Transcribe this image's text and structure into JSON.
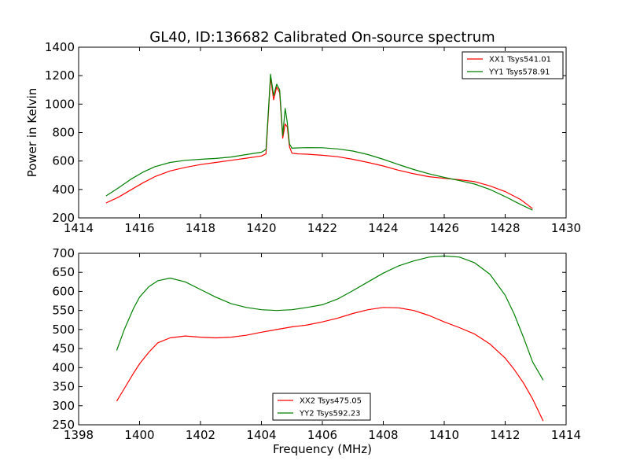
{
  "title": "GL40, ID:136682 Calibrated On-source spectrum",
  "chart_data": [
    {
      "type": "line",
      "ylabel": "Power in Kelvin",
      "xlabel": "",
      "xlim": [
        1414,
        1430
      ],
      "ylim": [
        200,
        1400
      ],
      "xticks": [
        1414,
        1416,
        1418,
        1420,
        1422,
        1424,
        1426,
        1428,
        1430
      ],
      "yticks": [
        200,
        400,
        600,
        800,
        1000,
        1200,
        1400
      ],
      "legend": "top-right",
      "series": [
        {
          "name": "XX1 Tsys541.01",
          "color": "#ff0000",
          "x": [
            1414.9,
            1415.3,
            1415.7,
            1416.1,
            1416.5,
            1417.0,
            1417.5,
            1418.0,
            1418.5,
            1419.0,
            1419.5,
            1420.0,
            1420.15,
            1420.22,
            1420.3,
            1420.4,
            1420.5,
            1420.6,
            1420.7,
            1420.78,
            1420.85,
            1420.92,
            1421.0,
            1421.2,
            1421.5,
            1422.0,
            1422.5,
            1423.0,
            1423.5,
            1424.0,
            1424.5,
            1425.0,
            1425.5,
            1426.0,
            1426.5,
            1427.0,
            1427.5,
            1428.0,
            1428.5,
            1428.9
          ],
          "y": [
            305,
            345,
            395,
            445,
            490,
            530,
            555,
            575,
            590,
            605,
            620,
            635,
            650,
            900,
            1190,
            1030,
            1120,
            1080,
            760,
            860,
            840,
            700,
            655,
            650,
            648,
            640,
            630,
            612,
            590,
            565,
            535,
            510,
            490,
            478,
            468,
            455,
            425,
            385,
            330,
            265
          ]
        },
        {
          "name": "YY1 Tsys578.91",
          "color": "#008000",
          "x": [
            1414.9,
            1415.3,
            1415.7,
            1416.1,
            1416.5,
            1417.0,
            1417.5,
            1418.0,
            1418.5,
            1419.0,
            1419.5,
            1420.0,
            1420.15,
            1420.22,
            1420.3,
            1420.4,
            1420.5,
            1420.6,
            1420.7,
            1420.78,
            1420.85,
            1420.92,
            1421.0,
            1421.2,
            1421.5,
            1422.0,
            1422.5,
            1423.0,
            1423.5,
            1424.0,
            1424.5,
            1425.0,
            1425.5,
            1426.0,
            1426.5,
            1427.0,
            1427.5,
            1428.0,
            1428.5,
            1428.9
          ],
          "y": [
            355,
            410,
            470,
            520,
            560,
            590,
            605,
            612,
            618,
            628,
            645,
            662,
            680,
            920,
            1210,
            1060,
            1140,
            1100,
            780,
            970,
            870,
            720,
            690,
            692,
            694,
            693,
            685,
            670,
            645,
            612,
            575,
            540,
            510,
            485,
            462,
            438,
            400,
            350,
            295,
            255
          ]
        }
      ]
    },
    {
      "type": "line",
      "ylabel": "",
      "xlabel": "Frequency (MHz)",
      "xlim": [
        1398,
        1414
      ],
      "ylim": [
        250,
        700
      ],
      "xticks": [
        1398,
        1400,
        1402,
        1404,
        1406,
        1408,
        1410,
        1412,
        1414
      ],
      "yticks": [
        250,
        300,
        350,
        400,
        450,
        500,
        550,
        600,
        650,
        700
      ],
      "legend": "bottom-center",
      "series": [
        {
          "name": "XX2 Tsys475.05",
          "color": "#ff0000",
          "x": [
            1399.25,
            1399.5,
            1399.8,
            1400.0,
            1400.3,
            1400.6,
            1401.0,
            1401.5,
            1402.0,
            1402.5,
            1403.0,
            1403.5,
            1404.0,
            1404.5,
            1405.0,
            1405.5,
            1406.0,
            1406.5,
            1407.0,
            1407.5,
            1408.0,
            1408.5,
            1409.0,
            1409.5,
            1410.0,
            1410.5,
            1411.0,
            1411.5,
            1412.0,
            1412.3,
            1412.6,
            1412.9,
            1413.25
          ],
          "y": [
            312,
            345,
            385,
            410,
            440,
            465,
            478,
            483,
            480,
            478,
            480,
            485,
            493,
            500,
            507,
            512,
            520,
            530,
            542,
            552,
            558,
            557,
            550,
            537,
            520,
            505,
            488,
            462,
            425,
            395,
            360,
            318,
            260
          ]
        },
        {
          "name": "YY2 Tsys592.23",
          "color": "#008000",
          "x": [
            1399.25,
            1399.5,
            1399.8,
            1400.0,
            1400.3,
            1400.6,
            1401.0,
            1401.5,
            1402.0,
            1402.5,
            1403.0,
            1403.5,
            1404.0,
            1404.5,
            1405.0,
            1405.5,
            1406.0,
            1406.5,
            1407.0,
            1407.5,
            1408.0,
            1408.5,
            1409.0,
            1409.5,
            1410.0,
            1410.5,
            1411.0,
            1411.5,
            1412.0,
            1412.3,
            1412.6,
            1412.9,
            1413.25
          ],
          "y": [
            445,
            500,
            555,
            585,
            612,
            628,
            635,
            625,
            605,
            585,
            568,
            558,
            552,
            550,
            552,
            558,
            565,
            580,
            602,
            625,
            648,
            667,
            680,
            690,
            693,
            690,
            675,
            645,
            590,
            540,
            480,
            415,
            367
          ]
        }
      ]
    }
  ]
}
